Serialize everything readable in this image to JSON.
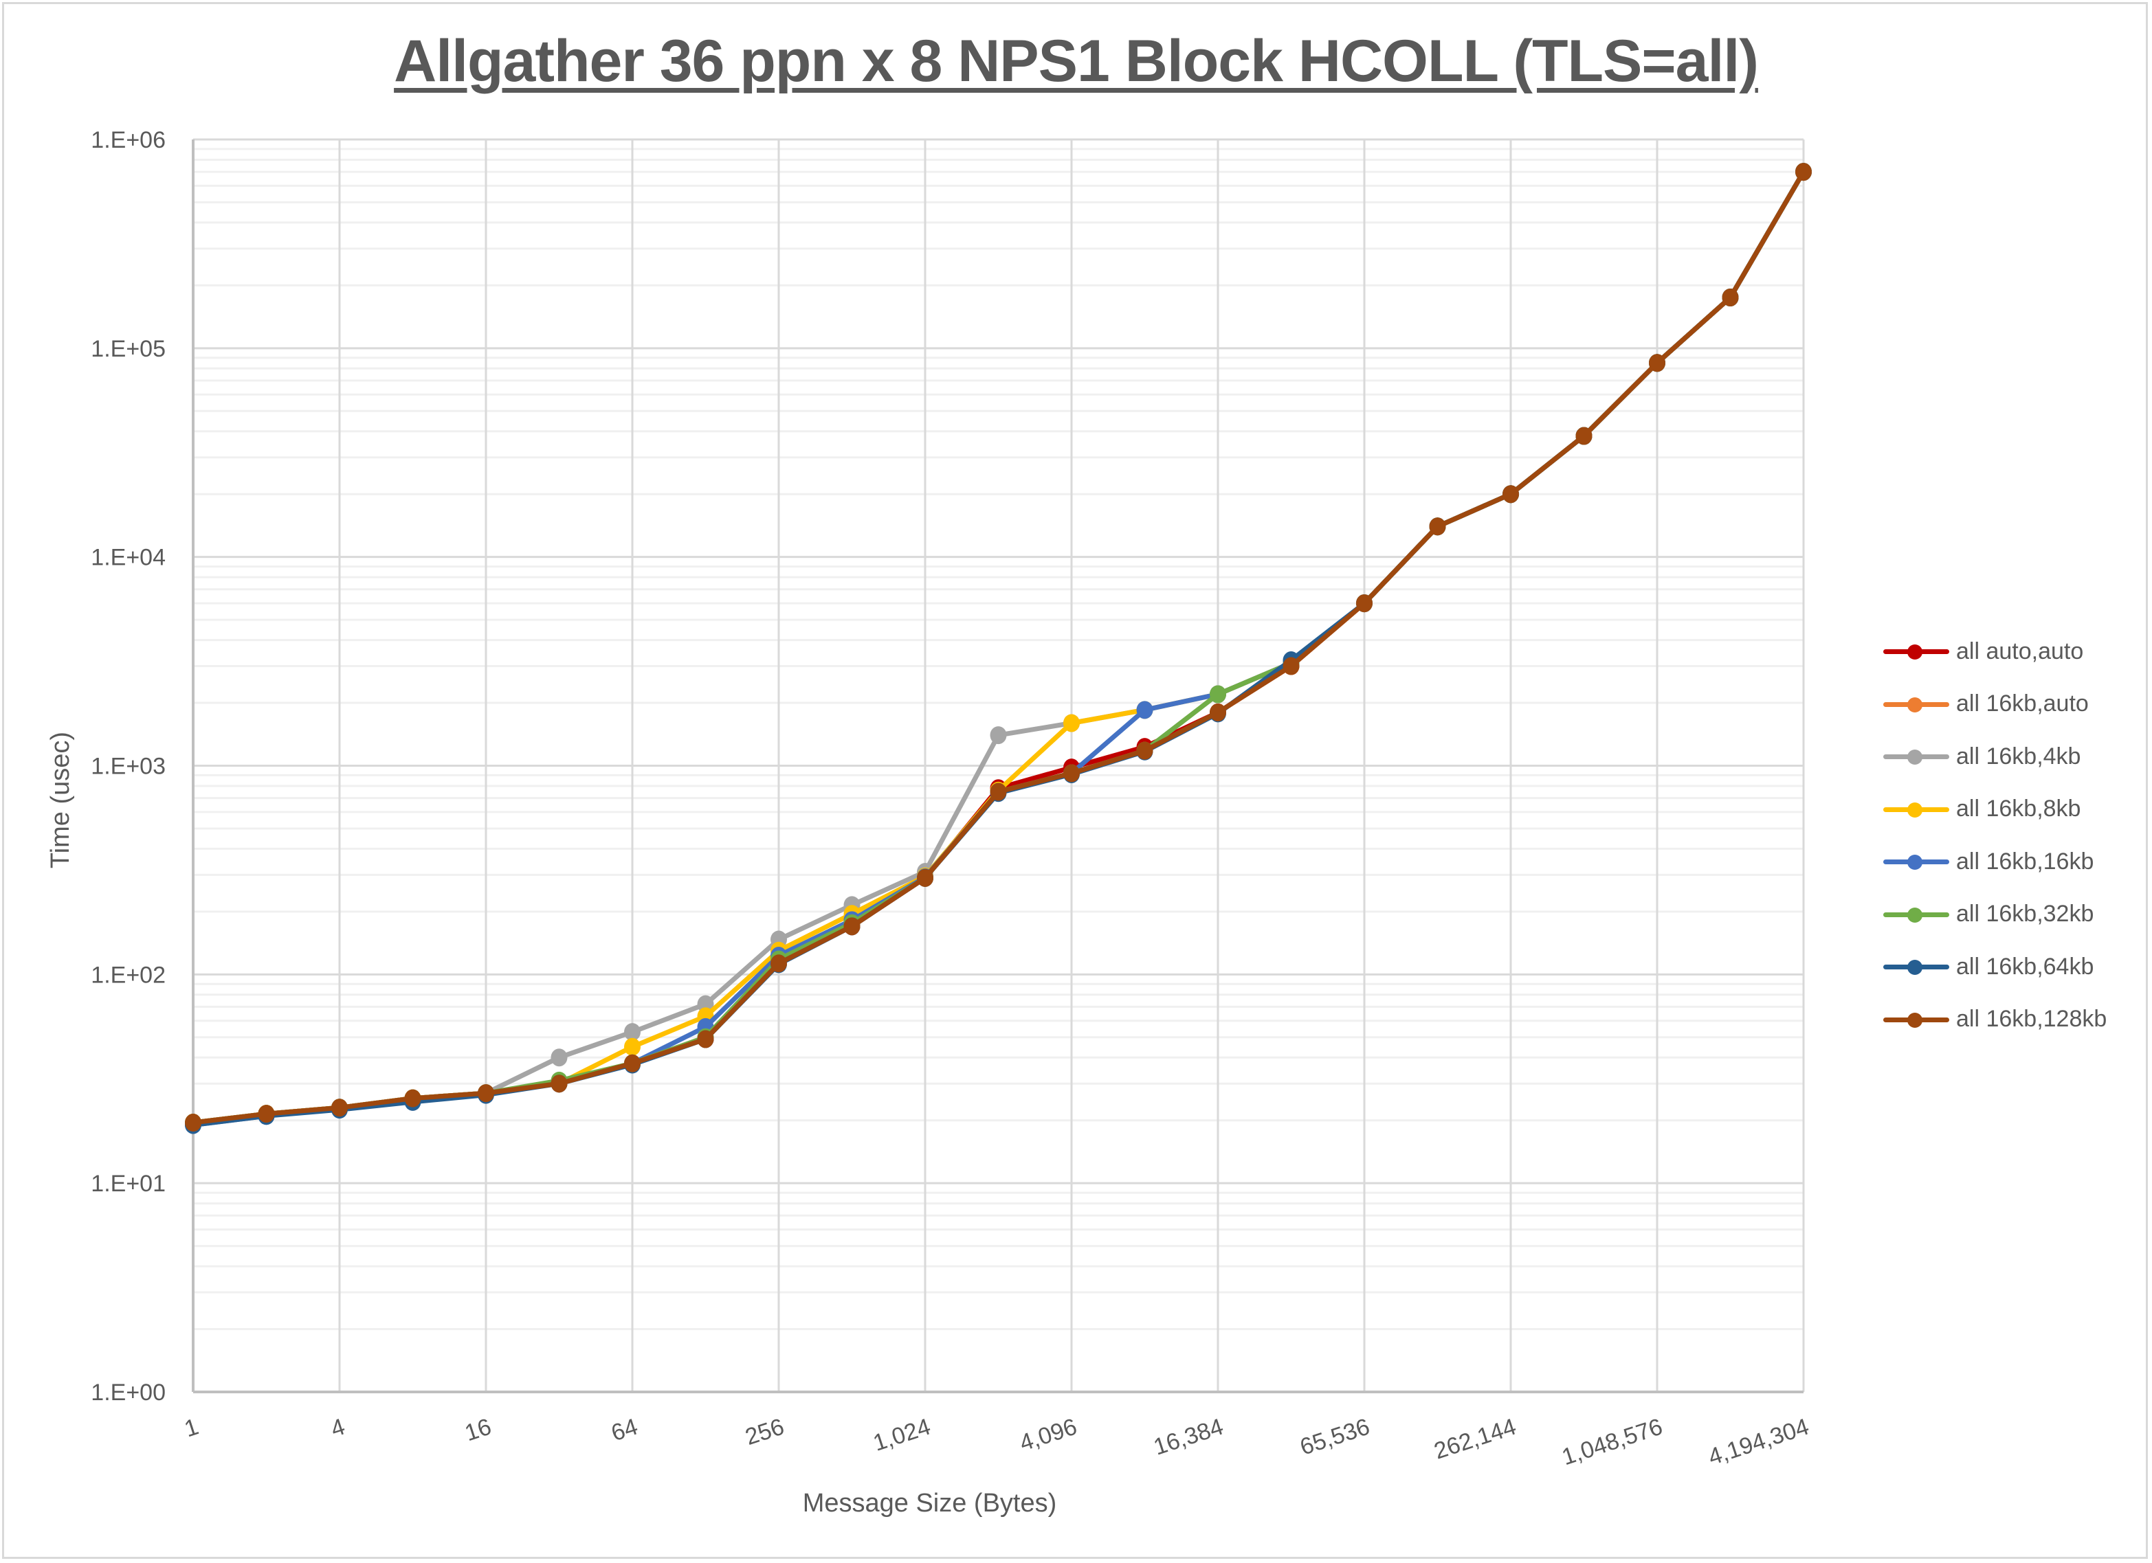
{
  "chart_data": {
    "type": "line",
    "title": "Allgather 36 ppn x 8 NPS1 Block HCOLL (TLS=all)",
    "xlabel": "Message Size (Bytes)",
    "ylabel": "Time (usec)",
    "xscale": "log2",
    "yscale": "log10",
    "ylim": [
      1,
      1000000
    ],
    "grid": true,
    "legend_position": "right",
    "x": [
      1,
      2,
      4,
      8,
      16,
      32,
      64,
      128,
      256,
      512,
      1024,
      2048,
      4096,
      8192,
      16384,
      32768,
      65536,
      131072,
      262144,
      524288,
      1048576,
      2097152,
      4194304
    ],
    "x_tick_labels": [
      "1",
      "4",
      "16",
      "64",
      "256",
      "1,024",
      "4,096",
      "16,384",
      "65,536",
      "262,144",
      "1,048,576",
      "4,194,304"
    ],
    "y_tick_labels": [
      "1.E+00",
      "1.E+01",
      "1.E+02",
      "1.E+03",
      "1.E+04",
      "1.E+05",
      "1.E+06"
    ],
    "series": [
      {
        "name": "all auto,auto",
        "color": "#C00000",
        "values": [
          19.5,
          21.5,
          23,
          25.5,
          27,
          30,
          37.5,
          49,
          113,
          170,
          290,
          780,
          980,
          1230,
          1800,
          3000,
          6000,
          14000,
          20000,
          38000,
          85000,
          175000,
          700000
        ]
      },
      {
        "name": "all 16kb,auto",
        "color": "#ED7D31",
        "values": [
          19.5,
          21.5,
          23,
          25.5,
          27,
          30,
          37.5,
          50,
          115,
          172,
          290,
          750,
          920,
          1180,
          1800,
          3000,
          6000,
          14000,
          20000,
          38000,
          85000,
          175000,
          700000
        ]
      },
      {
        "name": "all 16kb,4kb",
        "color": "#A5A5A5",
        "values": [
          19.5,
          21.5,
          23,
          25.5,
          27,
          40,
          53,
          72,
          147,
          215,
          310,
          1400,
          1600,
          1850,
          2200,
          3100,
          6000,
          14000,
          20000,
          38000,
          85000,
          175000,
          700000
        ]
      },
      {
        "name": "all 16kb,8kb",
        "color": "#FFC000",
        "values": [
          19.5,
          21.5,
          23,
          25.5,
          27,
          30,
          45,
          63,
          130,
          195,
          295,
          760,
          1600,
          1850,
          2200,
          3100,
          6000,
          14000,
          20000,
          38000,
          85000,
          175000,
          700000
        ]
      },
      {
        "name": "all 16kb,16kb",
        "color": "#4472C4",
        "values": [
          19,
          21,
          23,
          25,
          27,
          30,
          37.5,
          56,
          123,
          182,
          292,
          750,
          920,
          1850,
          2200,
          3100,
          6000,
          14000,
          20000,
          38000,
          85000,
          175000,
          700000
        ]
      },
      {
        "name": "all 16kb,32kb",
        "color": "#70AD47",
        "values": [
          19.5,
          21.5,
          23,
          25.5,
          27,
          31,
          37.5,
          50,
          118,
          176,
          290,
          750,
          920,
          1180,
          2200,
          3100,
          6000,
          14000,
          20000,
          38000,
          85000,
          175000,
          700000
        ]
      },
      {
        "name": "all 16kb,64kb",
        "color": "#255E91",
        "values": [
          19,
          21,
          22.5,
          24.5,
          26.5,
          30,
          37,
          49,
          112,
          170,
          290,
          740,
          910,
          1170,
          1780,
          3200,
          6000,
          14000,
          20000,
          38000,
          85000,
          175000,
          700000
        ]
      },
      {
        "name": "all 16kb,128kb",
        "color": "#9E480E",
        "values": [
          19.5,
          21.5,
          23,
          25.5,
          27,
          30,
          37.5,
          49,
          113,
          170,
          290,
          750,
          920,
          1180,
          1800,
          3000,
          6000,
          14000,
          20000,
          38000,
          85000,
          175000,
          700000
        ]
      }
    ]
  },
  "legend": {
    "items": [
      {
        "label": "all auto,auto",
        "color": "#C00000"
      },
      {
        "label": "all 16kb,auto",
        "color": "#ED7D31"
      },
      {
        "label": "all 16kb,4kb",
        "color": "#A5A5A5"
      },
      {
        "label": "all 16kb,8kb",
        "color": "#FFC000"
      },
      {
        "label": "all 16kb,16kb",
        "color": "#4472C4"
      },
      {
        "label": "all 16kb,32kb",
        "color": "#70AD47"
      },
      {
        "label": "all 16kb,64kb",
        "color": "#255E91"
      },
      {
        "label": "all 16kb,128kb",
        "color": "#9E480E"
      }
    ]
  }
}
